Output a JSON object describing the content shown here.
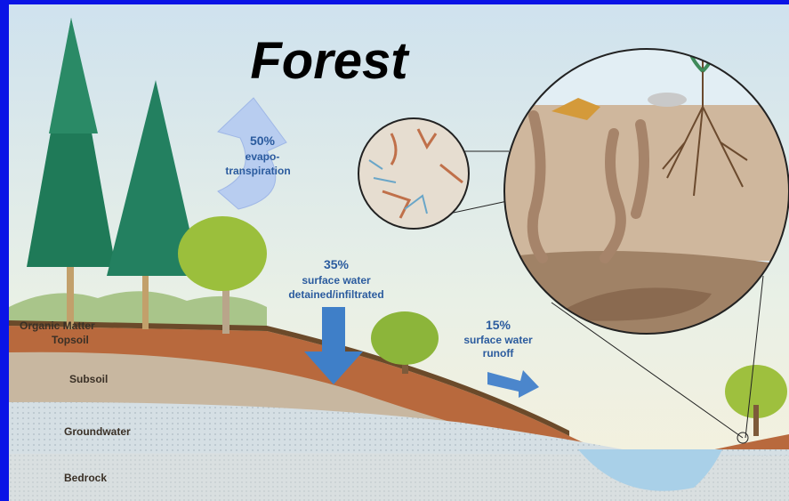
{
  "title": "Forest",
  "flows": [
    {
      "percent": "50%",
      "lines": [
        "evapo-",
        "transpiration"
      ]
    },
    {
      "percent": "35%",
      "lines": [
        "surface water",
        "detained/infiltrated"
      ]
    },
    {
      "percent": "15%",
      "lines": [
        "surface water",
        "runoff"
      ]
    }
  ],
  "layers": [
    "Organic Matter",
    "Topsoil",
    "Subsoil",
    "Groundwater",
    "Bedrock"
  ]
}
